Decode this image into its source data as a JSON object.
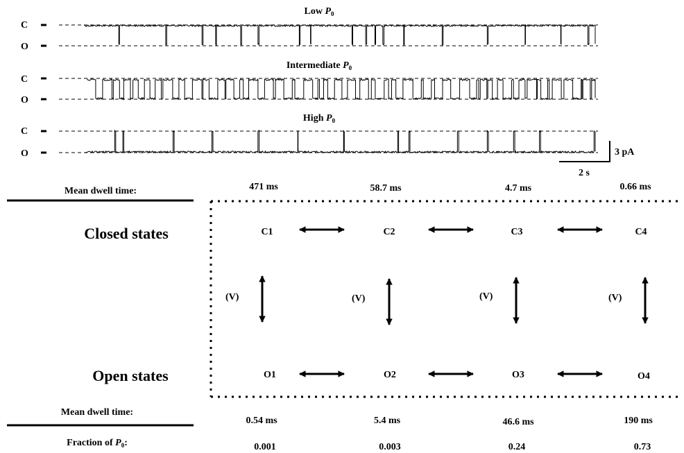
{
  "traces": [
    {
      "title": "Low",
      "subscript": "0"
    },
    {
      "title": "Intermediate",
      "subscript": "0"
    },
    {
      "title": "High",
      "subscript": "0"
    }
  ],
  "p_symbol": "P",
  "level_closed": "C",
  "level_open": "O",
  "scale_bar": {
    "current": "3 pA",
    "time": "2 s"
  },
  "closed_dwell_label": "Mean dwell time:",
  "closed_dwell_times": [
    "471 ms",
    "58.7 ms",
    "4.7 ms",
    "0.66 ms"
  ],
  "closed_states_label": "Closed states",
  "open_states_label": "Open states",
  "closed_states": [
    "C1",
    "C2",
    "C3",
    "C4"
  ],
  "open_states": [
    "O1",
    "O2",
    "O3",
    "O4"
  ],
  "voltage_label": "(V)",
  "open_dwell_label": "Mean dwell time:",
  "open_dwell_times": [
    "0.54 ms",
    "5.4 ms",
    "46.6 ms",
    "190 ms"
  ],
  "fraction_label_prefix": "Fraction of ",
  "fraction_label_suffix": ":",
  "fractions": [
    "0.001",
    "0.003",
    "0.24",
    "0.73"
  ]
}
